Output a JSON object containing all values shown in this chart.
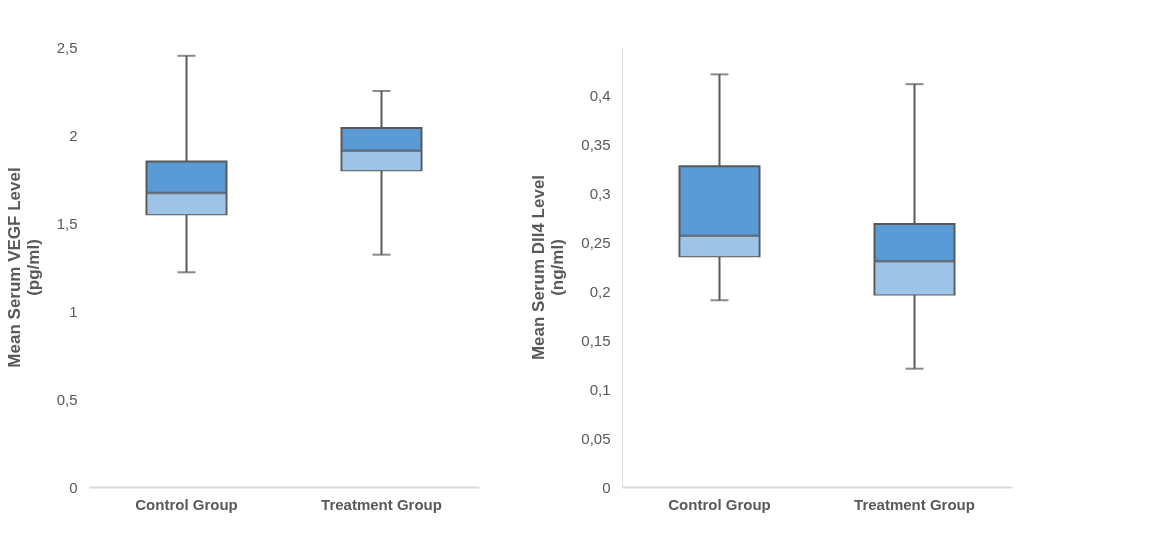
{
  "chart_data": [
    {
      "type": "box",
      "ylabel": "Mean Serum VEGF Level\n(pg/ml)",
      "categories": [
        "Control Group",
        "Treatment Group"
      ],
      "colors": [
        "#9dc3e6",
        "#5b9bd5"
      ],
      "boxes": [
        {
          "low": 1.22,
          "q1": 1.55,
          "median": 1.67,
          "q3": 1.85,
          "high": 2.45
        },
        {
          "low": 1.32,
          "q1": 1.8,
          "median": 1.91,
          "q3": 2.04,
          "high": 2.25
        }
      ],
      "ylim": [
        0,
        2.5
      ],
      "yticks": [
        0,
        {
          "value": 0.5,
          "label": "0,5"
        },
        1,
        {
          "value": 1.5,
          "label": "1,5"
        },
        2,
        {
          "value": 2.5,
          "label": "2,5"
        }
      ],
      "grid": false
    },
    {
      "type": "box",
      "ylabel": "Mean Serum Dll4 Level\n(ng/ml)",
      "categories": [
        "Control Group",
        "Treatment Group"
      ],
      "colors": [
        "#9dc3e6",
        "#5b9bd5"
      ],
      "boxes": [
        {
          "low": 0.191,
          "q1": 0.236,
          "median": 0.257,
          "q3": 0.328,
          "high": 0.422
        },
        {
          "low": 0.121,
          "q1": 0.197,
          "median": 0.231,
          "q3": 0.269,
          "high": 0.412
        }
      ],
      "ylim": [
        0,
        0.45
      ],
      "yticks": [
        0,
        {
          "value": 0.05,
          "label": "0,05"
        },
        {
          "value": 0.1,
          "label": "0,1"
        },
        {
          "value": 0.15,
          "label": "0,15"
        },
        {
          "value": 0.2,
          "label": "0,2"
        },
        {
          "value": 0.25,
          "label": "0,25"
        },
        {
          "value": 0.3,
          "label": "0,3"
        },
        {
          "value": 0.35,
          "label": "0,35"
        },
        {
          "value": 0.4,
          "label": "0,4"
        }
      ],
      "grid": false
    }
  ]
}
